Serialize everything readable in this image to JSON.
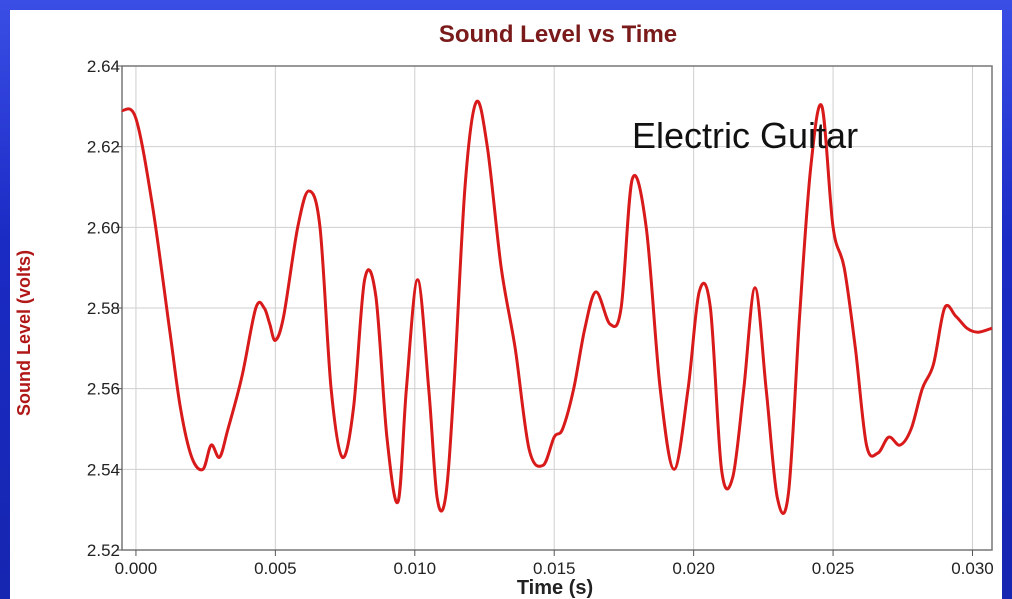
{
  "chart_data": {
    "type": "line",
    "title": "Sound Level vs Time",
    "xlabel": "Time (s)",
    "ylabel": "Sound Level (volts)",
    "annotation": "Electric Guitar",
    "xlim": [
      -0.0005,
      0.0307
    ],
    "ylim": [
      2.52,
      2.64
    ],
    "x_ticks": [
      0.0,
      0.005,
      0.01,
      0.015,
      0.02,
      0.025,
      0.03
    ],
    "x_tick_labels": [
      "0.000",
      "0.005",
      "0.010",
      "0.015",
      "0.020",
      "0.025",
      "0.030"
    ],
    "y_ticks": [
      2.52,
      2.54,
      2.56,
      2.58,
      2.6,
      2.62,
      2.64
    ],
    "y_tick_labels": [
      "2.52",
      "2.54",
      "2.56",
      "2.58",
      "2.60",
      "2.62",
      "2.64"
    ],
    "grid": true,
    "line_color": "#d81a1a",
    "series": [
      {
        "x": [
          -0.0005,
          0.0,
          0.0006,
          0.0012,
          0.0016,
          0.002,
          0.0024,
          0.0027,
          0.003,
          0.0033,
          0.0038,
          0.0043,
          0.0046,
          0.0048,
          0.005,
          0.0053,
          0.0058,
          0.0062,
          0.0066,
          0.007,
          0.0074,
          0.0078,
          0.0082,
          0.0086,
          0.009,
          0.0094,
          0.0097,
          0.0101,
          0.0105,
          0.0108,
          0.0111,
          0.0114,
          0.0118,
          0.0122,
          0.0126,
          0.0131,
          0.0136,
          0.0141,
          0.0146,
          0.015,
          0.0153,
          0.0157,
          0.0161,
          0.0165,
          0.017,
          0.0174,
          0.0178,
          0.0183,
          0.0188,
          0.0193,
          0.0198,
          0.0202,
          0.0206,
          0.021,
          0.0214,
          0.0218,
          0.0222,
          0.0226,
          0.023,
          0.0234,
          0.0238,
          0.0242,
          0.0246,
          0.025,
          0.0254,
          0.0258,
          0.0262,
          0.0266,
          0.027,
          0.0274,
          0.0278,
          0.0282,
          0.0286,
          0.029,
          0.0294,
          0.0298,
          0.0302,
          0.0307
        ],
        "y": [
          2.629,
          2.627,
          2.605,
          2.575,
          2.555,
          2.543,
          2.54,
          2.546,
          2.543,
          2.55,
          2.563,
          2.58,
          2.58,
          2.576,
          2.572,
          2.578,
          2.6,
          2.609,
          2.6,
          2.56,
          2.543,
          2.555,
          2.587,
          2.583,
          2.548,
          2.532,
          2.56,
          2.587,
          2.56,
          2.533,
          2.533,
          2.56,
          2.61,
          2.631,
          2.62,
          2.59,
          2.57,
          2.545,
          2.541,
          2.548,
          2.55,
          2.56,
          2.575,
          2.584,
          2.576,
          2.58,
          2.612,
          2.6,
          2.56,
          2.54,
          2.56,
          2.584,
          2.58,
          2.54,
          2.538,
          2.56,
          2.585,
          2.56,
          2.533,
          2.534,
          2.578,
          2.615,
          2.63,
          2.6,
          2.59,
          2.57,
          2.546,
          2.544,
          2.548,
          2.546,
          2.55,
          2.56,
          2.566,
          2.58,
          2.578,
          2.575,
          2.574,
          2.575
        ]
      }
    ]
  }
}
